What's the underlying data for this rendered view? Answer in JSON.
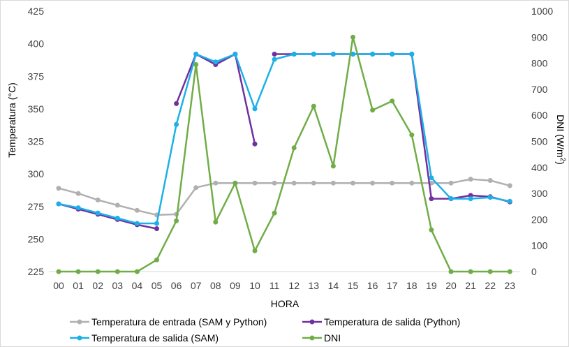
{
  "chart_data": {
    "type": "line",
    "xlabel": "HORA",
    "ylabel_left": "Temperatura (°C)",
    "ylabel_right": "DNI (W/m²)",
    "ylabel_right_base": "DNI (W/m",
    "ylabel_right_sup": "2",
    "ylabel_right_close": ")",
    "grid": false,
    "legend_position": "bottom",
    "categories": [
      "00",
      "01",
      "02",
      "03",
      "04",
      "05",
      "06",
      "07",
      "08",
      "09",
      "10",
      "11",
      "12",
      "13",
      "14",
      "15",
      "16",
      "17",
      "18",
      "19",
      "20",
      "21",
      "22",
      "23"
    ],
    "y_left": {
      "min": 225,
      "max": 425,
      "step": 25,
      "ticks": [
        "225",
        "250",
        "275",
        "300",
        "325",
        "350",
        "375",
        "400",
        "425"
      ]
    },
    "y_right": {
      "min": 0,
      "max": 1000,
      "step": 100,
      "ticks": [
        "0",
        "100",
        "200",
        "300",
        "400",
        "500",
        "600",
        "700",
        "800",
        "900",
        "1000"
      ]
    },
    "series": [
      {
        "name": "Temperatura de entrada (SAM y Python)",
        "axis": "left",
        "color": "#B0B0B0",
        "values": [
          289,
          285,
          280,
          276,
          272,
          268.5,
          269,
          289.5,
          293,
          293,
          293,
          293,
          293,
          293,
          293,
          293,
          293,
          293,
          293,
          293,
          293,
          296,
          295,
          291
        ]
      },
      {
        "name": "Temperatura de salida (Python)",
        "axis": "left",
        "color": "#7030A0",
        "values": [
          277,
          273,
          269,
          265,
          261,
          258,
          354,
          392,
          384,
          392,
          323,
          392,
          392,
          392,
          392,
          392,
          392,
          392,
          392,
          281,
          281,
          283.5,
          282.5,
          278.5
        ],
        "gaps_after": [
          5,
          10
        ]
      },
      {
        "name": "Temperatura de salida (SAM)",
        "axis": "left",
        "color": "#1CB0E8",
        "values": [
          277,
          274,
          270,
          266,
          262,
          262,
          338,
          392,
          386,
          392,
          350,
          388,
          392,
          392,
          392,
          392,
          392,
          392,
          392,
          297,
          281,
          281,
          282,
          279
        ]
      },
      {
        "name": "DNI",
        "axis": "right",
        "color": "#70AD47",
        "values": [
          0,
          0,
          0,
          0,
          0,
          45,
          195,
          795,
          190,
          340,
          80,
          225,
          475,
          635,
          405,
          900,
          620,
          655,
          525,
          160,
          0,
          0,
          0,
          0
        ]
      }
    ]
  }
}
